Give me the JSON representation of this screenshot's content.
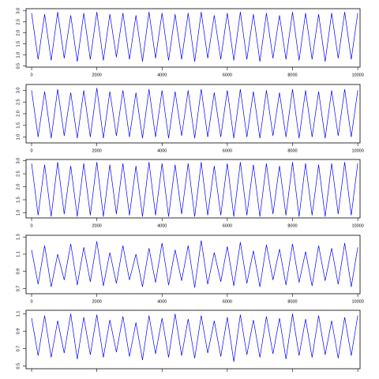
{
  "chart_data": [
    {
      "type": "line",
      "x": [
        0,
        200,
        400,
        600,
        800,
        1000,
        1200,
        1400,
        1600,
        1800,
        2000,
        2200,
        2400,
        2600,
        2800,
        3000,
        3200,
        3400,
        3600,
        3800,
        4000,
        4200,
        4400,
        4600,
        4800,
        5000,
        5200,
        5400,
        5600,
        5800,
        6000,
        6200,
        6400,
        6600,
        6800,
        7000,
        7200,
        7400,
        7600,
        7800,
        8000,
        8200,
        8400,
        8600,
        8800,
        9000,
        9200,
        9400,
        9600,
        9800,
        10000
      ],
      "series": [
        {
          "color": "#0000ff",
          "values": [
            2.9,
            0.8,
            2.85,
            0.75,
            2.95,
            0.85,
            2.8,
            0.7,
            2.9,
            0.8,
            2.95,
            0.75,
            2.85,
            0.9,
            2.9,
            0.8,
            2.8,
            0.7,
            2.95,
            0.85,
            2.9,
            0.75,
            2.85,
            0.8,
            2.9,
            0.7,
            2.95,
            0.85,
            2.8,
            0.8,
            2.9,
            0.75,
            2.95,
            0.8,
            2.85,
            0.7,
            2.9,
            0.85,
            2.8,
            0.8,
            2.95,
            0.75,
            2.9,
            0.8,
            2.85,
            0.7,
            2.9,
            0.85,
            2.95,
            0.8,
            2.9
          ]
        }
      ],
      "xlim": [
        -170,
        10070
      ],
      "xticks": [
        0,
        2000,
        4000,
        6000,
        8000,
        10000
      ],
      "xtick_labels": true,
      "ylim": [
        0.45,
        3.1
      ],
      "yticks": [
        0.5,
        {
          "value": 1,
          "label": "1.0"
        },
        1.5,
        {
          "value": 2,
          "label": "2.0"
        },
        2.5,
        {
          "value": 3,
          "label": "3.0"
        }
      ]
    },
    {
      "type": "line",
      "x": [
        0,
        200,
        400,
        600,
        800,
        1000,
        1200,
        1400,
        1600,
        1800,
        2000,
        2200,
        2400,
        2600,
        2800,
        3000,
        3200,
        3400,
        3600,
        3800,
        4000,
        4200,
        4400,
        4600,
        4800,
        5000,
        5200,
        5400,
        5600,
        5800,
        6000,
        6200,
        6400,
        6600,
        6800,
        7000,
        7200,
        7400,
        7600,
        7800,
        8000,
        8200,
        8400,
        8600,
        8800,
        9000,
        9200,
        9400,
        9600,
        9800,
        10000
      ],
      "series": [
        {
          "color": "#0000ff",
          "values": [
            3.0,
            1.0,
            2.95,
            0.95,
            3.05,
            1.05,
            2.9,
            0.95,
            3.0,
            1.0,
            3.1,
            0.95,
            2.95,
            1.05,
            3.0,
            1.0,
            2.9,
            0.95,
            3.05,
            1.0,
            3.0,
            0.95,
            2.95,
            1.05,
            3.0,
            0.95,
            3.05,
            1.0,
            2.9,
            1.0,
            3.0,
            0.95,
            3.05,
            1.0,
            2.95,
            0.95,
            3.0,
            1.05,
            2.9,
            1.0,
            3.05,
            0.95,
            3.0,
            1.0,
            2.95,
            0.95,
            3.0,
            1.05,
            3.05,
            1.0,
            3.0
          ]
        }
      ],
      "xlim": [
        -170,
        10070
      ],
      "xticks": [
        0,
        2000,
        4000,
        6000,
        8000,
        10000
      ],
      "xtick_labels": true,
      "ylim": [
        0.75,
        3.25
      ],
      "yticks": [
        {
          "value": 1,
          "label": "1.0"
        },
        1.5,
        {
          "value": 2,
          "label": "2.0"
        },
        2.5,
        {
          "value": 3,
          "label": "3.0"
        }
      ]
    },
    {
      "type": "line",
      "x": [
        0,
        200,
        400,
        600,
        800,
        1000,
        1200,
        1400,
        1600,
        1800,
        2000,
        2200,
        2400,
        2600,
        2800,
        3000,
        3200,
        3400,
        3600,
        3800,
        4000,
        4200,
        4400,
        4600,
        4800,
        5000,
        5200,
        5400,
        5600,
        5800,
        6000,
        6200,
        6400,
        6600,
        6800,
        7000,
        7200,
        7400,
        7600,
        7800,
        8000,
        8200,
        8400,
        8600,
        8800,
        9000,
        9200,
        9400,
        9600,
        9800,
        10000
      ],
      "series": [
        {
          "color": "#0000ff",
          "values": [
            2.9,
            0.9,
            2.85,
            0.85,
            2.95,
            0.95,
            2.8,
            0.85,
            2.9,
            0.9,
            2.95,
            0.85,
            2.85,
            0.95,
            2.9,
            0.9,
            2.8,
            0.85,
            2.95,
            0.9,
            2.9,
            0.85,
            2.85,
            0.95,
            2.9,
            0.85,
            2.95,
            0.9,
            2.8,
            0.9,
            2.9,
            0.85,
            2.95,
            0.9,
            2.85,
            0.85,
            2.9,
            0.95,
            2.8,
            0.9,
            2.95,
            0.85,
            2.9,
            0.9,
            2.85,
            0.85,
            2.9,
            0.95,
            2.95,
            0.9,
            2.9
          ]
        }
      ],
      "xlim": [
        -170,
        10070
      ],
      "xticks": [
        0,
        2000,
        4000,
        6000,
        8000,
        10000
      ],
      "xtick_labels": true,
      "ylim": [
        0.8,
        3.05
      ],
      "yticks": [
        {
          "value": 1,
          "label": "1.0"
        },
        1.5,
        {
          "value": 2,
          "label": "2.0"
        },
        2.5,
        {
          "value": 3,
          "label": "3.0"
        }
      ]
    },
    {
      "type": "line",
      "x": [
        0,
        200,
        400,
        600,
        800,
        1000,
        1200,
        1400,
        1600,
        1800,
        2000,
        2200,
        2400,
        2600,
        2800,
        3000,
        3200,
        3400,
        3600,
        3800,
        4000,
        4200,
        4400,
        4600,
        4800,
        5000,
        5200,
        5400,
        5600,
        5800,
        6000,
        6200,
        6400,
        6600,
        6800,
        7000,
        7200,
        7400,
        7600,
        7800,
        8000,
        8200,
        8400,
        8600,
        8800,
        9000,
        9200,
        9400,
        9600,
        9800,
        10000
      ],
      "series": [
        {
          "color": "#0000ff",
          "values": [
            1.15,
            0.75,
            1.2,
            0.72,
            1.1,
            0.8,
            1.22,
            0.74,
            1.18,
            0.78,
            1.25,
            0.73,
            1.12,
            0.76,
            1.2,
            0.8,
            1.1,
            0.72,
            1.17,
            0.77,
            1.23,
            0.74,
            1.15,
            0.79,
            1.2,
            0.71,
            1.26,
            0.75,
            1.12,
            0.78,
            1.19,
            0.73,
            1.24,
            0.76,
            1.14,
            0.72,
            1.21,
            0.8,
            1.16,
            0.74,
            1.22,
            0.77,
            1.13,
            0.73,
            1.2,
            0.79,
            1.17,
            0.75,
            1.23,
            0.72,
            1.18
          ]
        }
      ],
      "xlim": [
        -170,
        10070
      ],
      "xticks": [
        0,
        2000,
        4000,
        6000,
        8000,
        10000
      ],
      "xtick_labels": true,
      "ylim": [
        0.64,
        1.32
      ],
      "yticks": [
        0.7,
        0.9,
        1.1,
        1.3
      ]
    },
    {
      "type": "line",
      "x": [
        0,
        200,
        400,
        600,
        800,
        1000,
        1200,
        1400,
        1600,
        1800,
        2000,
        2200,
        2400,
        2600,
        2800,
        3000,
        3200,
        3400,
        3600,
        3800,
        4000,
        4200,
        4400,
        4600,
        4800,
        5000,
        5200,
        5400,
        5600,
        5800,
        6000,
        6200,
        6400,
        6600,
        6800,
        7000,
        7200,
        7400,
        7600,
        7800,
        8000,
        8200,
        8400,
        8600,
        8800,
        9000,
        9200,
        9400,
        9600,
        9800,
        10000
      ],
      "series": [
        {
          "color": "#0000ff",
          "values": [
            1.05,
            0.62,
            1.08,
            0.6,
            1.02,
            0.65,
            1.1,
            0.58,
            1.06,
            0.63,
            1.09,
            0.6,
            1.03,
            0.66,
            1.07,
            0.61,
            1.0,
            0.57,
            1.08,
            0.64,
            1.05,
            0.6,
            1.1,
            0.62,
            1.04,
            0.59,
            1.08,
            0.65,
            1.02,
            0.61,
            1.06,
            0.55,
            1.09,
            0.63,
            1.03,
            0.6,
            1.07,
            0.64,
            1.05,
            0.58,
            1.1,
            0.62,
            1.04,
            0.6,
            1.08,
            0.63,
            1.02,
            0.59,
            1.06,
            0.62,
            1.08
          ]
        }
      ],
      "xlim": [
        -170,
        10070
      ],
      "xticks": [
        0,
        2000,
        4000,
        6000,
        8000,
        10000
      ],
      "xtick_labels": false,
      "ylim": [
        0.47,
        1.14
      ],
      "yticks": [
        0.5,
        0.7,
        0.9,
        1.1
      ]
    }
  ]
}
